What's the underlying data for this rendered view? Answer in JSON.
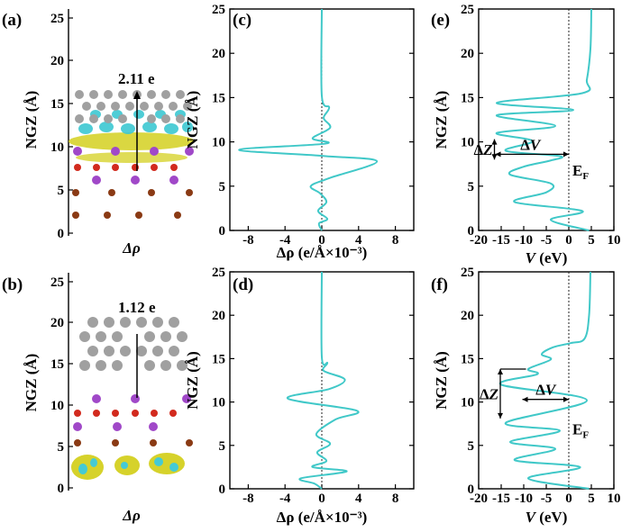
{
  "figure": {
    "colors": {
      "curve": "#40c8c8",
      "axis": "#000000",
      "zero_line": "#202020",
      "ga_atom": "#a0a0a0",
      "red_atom": "#d22a1e",
      "purple_atom": "#a048c8",
      "brown_atom": "#8a3a14",
      "cyan_cloud": "#3cc8d2",
      "yellow_cloud": "#d4d020"
    }
  },
  "chart_data": [
    {
      "id": "a",
      "type": "structure",
      "panel_label": "(a)",
      "ylabel": "NGZ (Å)",
      "xlabel": "Δρ",
      "ylim": [
        0,
        25
      ],
      "yticks": [
        0,
        5,
        10,
        15,
        20,
        25
      ],
      "annotation": "2.11 e"
    },
    {
      "id": "b",
      "type": "structure",
      "panel_label": "(b)",
      "ylabel": "NGZ (Å)",
      "xlabel": "Δρ",
      "ylim": [
        0,
        25
      ],
      "yticks": [
        0,
        5,
        10,
        15,
        20,
        25
      ],
      "annotation": "1.12 e"
    },
    {
      "id": "c",
      "type": "line",
      "panel_label": "(c)",
      "ylabel": "NGZ (Å)",
      "xlabel": "Δρ (e/Å×10⁻³)",
      "xlim": [
        -10,
        10
      ],
      "ylim": [
        0,
        25
      ],
      "xticks": [
        -8,
        -4,
        0,
        4,
        8
      ],
      "yticks": [
        0,
        5,
        10,
        15,
        20,
        25
      ],
      "series": [
        {
          "name": "Δρ",
          "x": [
            0,
            -0.3,
            0.6,
            -0.4,
            0.5,
            -0.2,
            -1.2,
            0.8,
            6.0,
            0.3,
            -9.0,
            0.4,
            -1.0,
            0.9,
            0.2,
            0.8,
            0.0,
            0.0
          ],
          "y": [
            0,
            0.8,
            1.3,
            2.2,
            3.2,
            4.2,
            5.0,
            5.9,
            7.8,
            8.4,
            9.1,
            9.8,
            10.4,
            11.6,
            12.7,
            13.9,
            15.2,
            25
          ]
        }
      ]
    },
    {
      "id": "d",
      "type": "line",
      "panel_label": "(d)",
      "ylabel": "NGZ (Å)",
      "xlabel": "Δρ (e/Å×10⁻³)",
      "xlim": [
        -10,
        10
      ],
      "ylim": [
        0,
        25
      ],
      "xticks": [
        -8,
        -4,
        0,
        4,
        8
      ],
      "yticks": [
        0,
        5,
        10,
        15,
        20,
        25
      ],
      "series": [
        {
          "name": "Δρ",
          "x": [
            0,
            -0.8,
            -2.3,
            2.7,
            -1.0,
            0.5,
            -0.5,
            0.9,
            -0.6,
            1.5,
            3.8,
            -3.7,
            0.8,
            2.5,
            0.2,
            0.6,
            0.0,
            0.0
          ],
          "y": [
            0,
            0.6,
            1.2,
            2.0,
            2.5,
            3.2,
            4.2,
            5.2,
            6.3,
            8.0,
            9.0,
            10.4,
            11.5,
            12.6,
            13.6,
            14.5,
            15.2,
            25
          ]
        }
      ]
    },
    {
      "id": "e",
      "type": "line",
      "panel_label": "(e)",
      "ylabel": "NGZ (Å)",
      "xlabel": "V (eV)",
      "xlim": [
        -20,
        10
      ],
      "ylim": [
        0,
        25
      ],
      "xticks": [
        -20,
        -15,
        -10,
        -5,
        0,
        5,
        10
      ],
      "yticks": [
        0,
        5,
        10,
        15,
        20,
        25
      ],
      "fermi_label": "EF",
      "delta_v_label": "ΔV",
      "delta_z_label": "ΔZ",
      "series": [
        {
          "name": "V",
          "x": [
            4.5,
            -4.0,
            3.0,
            -12.0,
            -5.0,
            -4.0,
            -13.0,
            -10.0,
            -4.0,
            -2.0,
            -14.0,
            -8.0,
            -16.0,
            -3.0,
            -16.0,
            1.0,
            -16.0,
            3.0,
            4.0,
            4.8,
            5.0
          ],
          "y": [
            0,
            1.2,
            2.2,
            3.2,
            4.3,
            5.3,
            6.3,
            7.2,
            7.9,
            8.4,
            9.0,
            10.1,
            11.0,
            11.8,
            13.0,
            13.6,
            14.4,
            15.5,
            17.0,
            20.5,
            25
          ]
        }
      ]
    },
    {
      "id": "f",
      "type": "line",
      "panel_label": "(f)",
      "ylabel": "NGZ (Å)",
      "xlabel": "V (eV)",
      "xlim": [
        -20,
        10
      ],
      "ylim": [
        0,
        25
      ],
      "xticks": [
        -20,
        -15,
        -10,
        -5,
        0,
        5,
        10
      ],
      "yticks": [
        0,
        5,
        10,
        15,
        20,
        25
      ],
      "fermi_label": "EF",
      "delta_v_label": "ΔV",
      "delta_z_label": "ΔZ",
      "series": [
        {
          "name": "V",
          "x": [
            4.5,
            -9.0,
            2.5,
            -12.0,
            -3.0,
            -13.0,
            -2.0,
            -14.0,
            4.0,
            -15.0,
            -7.0,
            -9.0,
            -4.0,
            -6.0,
            -3.5,
            0.5,
            3.5,
            4.5,
            4.8
          ],
          "y": [
            0,
            1.2,
            2.5,
            3.3,
            4.6,
            5.4,
            6.7,
            7.6,
            10.2,
            12.0,
            13.2,
            13.8,
            14.9,
            15.5,
            16.3,
            16.8,
            17.3,
            20.0,
            25
          ]
        }
      ]
    }
  ]
}
